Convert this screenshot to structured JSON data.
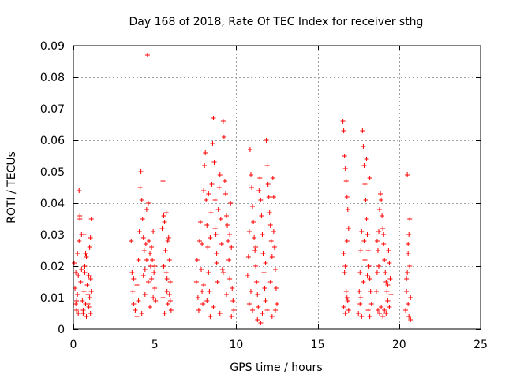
{
  "chart_data": {
    "type": "scatter",
    "title": "Day 168 of 2018, Rate Of TEC Index for receiver sthg",
    "xlabel": "GPS time / hours",
    "ylabel": "ROTI / TECUs",
    "xlim": [
      0,
      25
    ],
    "ylim": [
      0,
      0.09
    ],
    "xticks": [
      0,
      5,
      10,
      15,
      20,
      25
    ],
    "xtick_labels": [
      "0",
      "5",
      "10",
      "15",
      "20",
      "25"
    ],
    "yticks": [
      0,
      0.01,
      0.02,
      0.03,
      0.04,
      0.05,
      0.06,
      0.07,
      0.08,
      0.09
    ],
    "ytick_labels": [
      "0",
      "0.01",
      "0.02",
      "0.03",
      "0.04",
      "0.05",
      "0.06",
      "0.07",
      "0.08",
      "0.09"
    ],
    "grid": true,
    "marker": "+",
    "series": [
      {
        "name": "ROTI",
        "color": "#ff0000",
        "points": [
          [
            0.05,
            0.021
          ],
          [
            0.1,
            0.013
          ],
          [
            0.15,
            0.008
          ],
          [
            0.2,
            0.006
          ],
          [
            0.25,
            0.011
          ],
          [
            0.3,
            0.017
          ],
          [
            0.35,
            0.028
          ],
          [
            0.4,
            0.036
          ],
          [
            0.35,
            0.044
          ],
          [
            0.4,
            0.035
          ],
          [
            0.5,
            0.03
          ],
          [
            0.45,
            0.015
          ],
          [
            0.55,
            0.009
          ],
          [
            0.6,
            0.005
          ],
          [
            0.65,
            0.012
          ],
          [
            0.7,
            0.02
          ],
          [
            0.75,
            0.024
          ],
          [
            0.8,
            0.023
          ],
          [
            0.7,
            0.018
          ],
          [
            0.85,
            0.014
          ],
          [
            0.9,
            0.011
          ],
          [
            0.95,
            0.007
          ],
          [
            1.0,
            0.01
          ],
          [
            1.05,
            0.029
          ],
          [
            1.1,
            0.035
          ],
          [
            1.0,
            0.026
          ],
          [
            1.05,
            0.016
          ],
          [
            1.1,
            0.012
          ],
          [
            0.2,
            0.009
          ],
          [
            0.3,
            0.005
          ],
          [
            0.6,
            0.006
          ],
          [
            0.8,
            0.004
          ],
          [
            0.9,
            0.008
          ],
          [
            1.05,
            0.005
          ],
          [
            0.15,
            0.018
          ],
          [
            0.25,
            0.024
          ],
          [
            0.5,
            0.019
          ],
          [
            0.65,
            0.03
          ],
          [
            0.75,
            0.008
          ],
          [
            0.95,
            0.017
          ],
          [
            3.55,
            0.028
          ],
          [
            3.6,
            0.018
          ],
          [
            3.65,
            0.012
          ],
          [
            3.7,
            0.008
          ],
          [
            3.8,
            0.006
          ],
          [
            3.9,
            0.014
          ],
          [
            4.0,
            0.022
          ],
          [
            4.05,
            0.031
          ],
          [
            4.1,
            0.045
          ],
          [
            4.15,
            0.05
          ],
          [
            4.2,
            0.041
          ],
          [
            4.25,
            0.035
          ],
          [
            4.3,
            0.029
          ],
          [
            4.35,
            0.025
          ],
          [
            4.4,
            0.019
          ],
          [
            4.45,
            0.027
          ],
          [
            4.5,
            0.038
          ],
          [
            4.55,
            0.087
          ],
          [
            4.6,
            0.04
          ],
          [
            4.65,
            0.028
          ],
          [
            4.7,
            0.024
          ],
          [
            4.75,
            0.02
          ],
          [
            4.8,
            0.016
          ],
          [
            4.85,
            0.022
          ],
          [
            4.9,
            0.031
          ],
          [
            4.95,
            0.018
          ],
          [
            5.0,
            0.013
          ],
          [
            5.05,
            0.009
          ],
          [
            4.5,
            0.022
          ],
          [
            4.6,
            0.015
          ],
          [
            4.0,
            0.009
          ],
          [
            4.2,
            0.005
          ],
          [
            4.4,
            0.011
          ],
          [
            4.7,
            0.007
          ],
          [
            4.9,
            0.01
          ],
          [
            3.7,
            0.016
          ],
          [
            3.9,
            0.004
          ],
          [
            4.3,
            0.017
          ],
          [
            4.8,
            0.026
          ],
          [
            5.0,
            0.02
          ],
          [
            5.45,
            0.032
          ],
          [
            5.5,
            0.047
          ],
          [
            5.55,
            0.036
          ],
          [
            5.6,
            0.034
          ],
          [
            5.65,
            0.025
          ],
          [
            5.7,
            0.018
          ],
          [
            5.75,
            0.012
          ],
          [
            5.8,
            0.008
          ],
          [
            5.85,
            0.029
          ],
          [
            5.9,
            0.022
          ],
          [
            5.95,
            0.015
          ],
          [
            6.0,
            0.006
          ],
          [
            5.5,
            0.01
          ],
          [
            5.6,
            0.005
          ],
          [
            5.7,
            0.037
          ],
          [
            5.8,
            0.028
          ],
          [
            5.9,
            0.011
          ],
          [
            5.55,
            0.02
          ],
          [
            5.75,
            0.016
          ],
          [
            5.95,
            0.009
          ],
          [
            7.55,
            0.015
          ],
          [
            7.6,
            0.022
          ],
          [
            7.65,
            0.01
          ],
          [
            7.7,
            0.006
          ],
          [
            7.75,
            0.028
          ],
          [
            7.8,
            0.034
          ],
          [
            7.85,
            0.019
          ],
          [
            7.9,
            0.012
          ],
          [
            7.95,
            0.008
          ],
          [
            8.0,
            0.044
          ],
          [
            8.05,
            0.052
          ],
          [
            8.1,
            0.056
          ],
          [
            8.15,
            0.041
          ],
          [
            8.2,
            0.033
          ],
          [
            8.25,
            0.026
          ],
          [
            8.3,
            0.018
          ],
          [
            8.35,
            0.012
          ],
          [
            8.4,
            0.029
          ],
          [
            8.45,
            0.037
          ],
          [
            8.5,
            0.046
          ],
          [
            8.55,
            0.059
          ],
          [
            8.6,
            0.067
          ],
          [
            8.65,
            0.053
          ],
          [
            8.7,
            0.041
          ],
          [
            8.75,
            0.03
          ],
          [
            8.8,
            0.021
          ],
          [
            8.85,
            0.015
          ],
          [
            8.9,
            0.038
          ],
          [
            8.95,
            0.045
          ],
          [
            9.0,
            0.049
          ],
          [
            9.05,
            0.035
          ],
          [
            9.1,
            0.027
          ],
          [
            9.15,
            0.019
          ],
          [
            9.2,
            0.066
          ],
          [
            9.25,
            0.061
          ],
          [
            9.3,
            0.047
          ],
          [
            9.35,
            0.043
          ],
          [
            9.4,
            0.036
          ],
          [
            9.45,
            0.033
          ],
          [
            9.5,
            0.028
          ],
          [
            9.55,
            0.022
          ],
          [
            9.6,
            0.03
          ],
          [
            9.65,
            0.04
          ],
          [
            9.7,
            0.026
          ],
          [
            9.75,
            0.013
          ],
          [
            9.8,
            0.009
          ],
          [
            9.85,
            0.006
          ],
          [
            8.2,
            0.009
          ],
          [
            8.6,
            0.007
          ],
          [
            9.0,
            0.005
          ],
          [
            9.4,
            0.011
          ],
          [
            8.0,
            0.014
          ],
          [
            8.8,
            0.024
          ],
          [
            9.6,
            0.016
          ],
          [
            7.9,
            0.027
          ],
          [
            8.4,
            0.004
          ],
          [
            9.2,
            0.018
          ],
          [
            9.7,
            0.004
          ],
          [
            8.3,
            0.043
          ],
          [
            8.7,
            0.032
          ],
          [
            10.7,
            0.017
          ],
          [
            10.75,
            0.023
          ],
          [
            10.8,
            0.031
          ],
          [
            10.85,
            0.057
          ],
          [
            10.9,
            0.049
          ],
          [
            10.95,
            0.045
          ],
          [
            11.0,
            0.039
          ],
          [
            11.05,
            0.034
          ],
          [
            11.1,
            0.029
          ],
          [
            11.15,
            0.025
          ],
          [
            11.2,
            0.02
          ],
          [
            11.25,
            0.015
          ],
          [
            11.3,
            0.011
          ],
          [
            11.35,
            0.007
          ],
          [
            11.4,
            0.044
          ],
          [
            11.45,
            0.048
          ],
          [
            11.5,
            0.041
          ],
          [
            11.55,
            0.036
          ],
          [
            11.6,
            0.03
          ],
          [
            11.65,
            0.024
          ],
          [
            11.7,
            0.018
          ],
          [
            11.75,
            0.013
          ],
          [
            11.8,
            0.009
          ],
          [
            11.85,
            0.06
          ],
          [
            11.9,
            0.052
          ],
          [
            11.95,
            0.046
          ],
          [
            12.0,
            0.042
          ],
          [
            12.05,
            0.037
          ],
          [
            12.1,
            0.033
          ],
          [
            12.15,
            0.028
          ],
          [
            12.2,
            0.023
          ],
          [
            12.25,
            0.048
          ],
          [
            12.3,
            0.042
          ],
          [
            12.35,
            0.026
          ],
          [
            12.4,
            0.019
          ],
          [
            12.45,
            0.013
          ],
          [
            12.5,
            0.008
          ],
          [
            11.0,
            0.006
          ],
          [
            11.3,
            0.003
          ],
          [
            11.6,
            0.005
          ],
          [
            11.9,
            0.006
          ],
          [
            12.2,
            0.004
          ],
          [
            12.4,
            0.006
          ],
          [
            10.9,
            0.012
          ],
          [
            11.5,
            0.002
          ],
          [
            12.1,
            0.015
          ],
          [
            11.2,
            0.026
          ],
          [
            11.8,
            0.021
          ],
          [
            12.3,
            0.031
          ],
          [
            10.8,
            0.008
          ],
          [
            16.55,
            0.066
          ],
          [
            16.6,
            0.063
          ],
          [
            16.65,
            0.055
          ],
          [
            16.7,
            0.051
          ],
          [
            16.75,
            0.047
          ],
          [
            16.8,
            0.042
          ],
          [
            16.85,
            0.038
          ],
          [
            16.9,
            0.032
          ],
          [
            16.6,
            0.024
          ],
          [
            16.7,
            0.02
          ],
          [
            16.75,
            0.012
          ],
          [
            16.8,
            0.01
          ],
          [
            16.6,
            0.007
          ],
          [
            16.7,
            0.005
          ],
          [
            16.85,
            0.009
          ],
          [
            16.65,
            0.018
          ],
          [
            16.8,
            0.028
          ],
          [
            16.9,
            0.006
          ],
          [
            17.5,
            0.005
          ],
          [
            17.55,
            0.012
          ],
          [
            17.6,
            0.018
          ],
          [
            17.65,
            0.025
          ],
          [
            17.7,
            0.031
          ],
          [
            17.75,
            0.063
          ],
          [
            17.8,
            0.058
          ],
          [
            17.85,
            0.052
          ],
          [
            17.9,
            0.046
          ],
          [
            17.95,
            0.041
          ],
          [
            18.0,
            0.035
          ],
          [
            18.05,
            0.03
          ],
          [
            18.1,
            0.025
          ],
          [
            18.15,
            0.02
          ],
          [
            18.2,
            0.016
          ],
          [
            18.25,
            0.012
          ],
          [
            18.3,
            0.008
          ],
          [
            18.0,
            0.054
          ],
          [
            18.2,
            0.048
          ],
          [
            17.6,
            0.008
          ],
          [
            17.7,
            0.004
          ],
          [
            17.8,
            0.015
          ],
          [
            17.9,
            0.022
          ],
          [
            18.1,
            0.006
          ],
          [
            18.2,
            0.004
          ],
          [
            17.65,
            0.01
          ],
          [
            17.85,
            0.028
          ],
          [
            18.05,
            0.017
          ],
          [
            18.6,
            0.012
          ],
          [
            18.65,
            0.018
          ],
          [
            18.7,
            0.025
          ],
          [
            18.75,
            0.031
          ],
          [
            18.8,
            0.038
          ],
          [
            18.85,
            0.043
          ],
          [
            18.9,
            0.041
          ],
          [
            18.95,
            0.036
          ],
          [
            19.0,
            0.032
          ],
          [
            19.05,
            0.027
          ],
          [
            19.1,
            0.022
          ],
          [
            19.15,
            0.018
          ],
          [
            19.2,
            0.015
          ],
          [
            19.25,
            0.012
          ],
          [
            19.3,
            0.009
          ],
          [
            19.35,
            0.025
          ],
          [
            19.4,
            0.021
          ],
          [
            19.45,
            0.016
          ],
          [
            19.5,
            0.011
          ],
          [
            18.7,
            0.006
          ],
          [
            18.8,
            0.005
          ],
          [
            18.9,
            0.007
          ],
          [
            19.0,
            0.004
          ],
          [
            19.1,
            0.006
          ],
          [
            19.2,
            0.005
          ],
          [
            19.4,
            0.007
          ],
          [
            18.75,
            0.02
          ],
          [
            19.05,
            0.03
          ],
          [
            19.3,
            0.014
          ],
          [
            18.65,
            0.028
          ],
          [
            20.4,
            0.006
          ],
          [
            20.45,
            0.012
          ],
          [
            20.5,
            0.018
          ],
          [
            20.55,
            0.024
          ],
          [
            20.6,
            0.03
          ],
          [
            20.65,
            0.035
          ],
          [
            20.5,
            0.049
          ],
          [
            20.55,
            0.008
          ],
          [
            20.6,
            0.004
          ],
          [
            20.7,
            0.01
          ],
          [
            20.45,
            0.016
          ],
          [
            20.65,
            0.02
          ],
          [
            20.55,
            0.027
          ],
          [
            20.7,
            0.003
          ]
        ]
      }
    ]
  }
}
